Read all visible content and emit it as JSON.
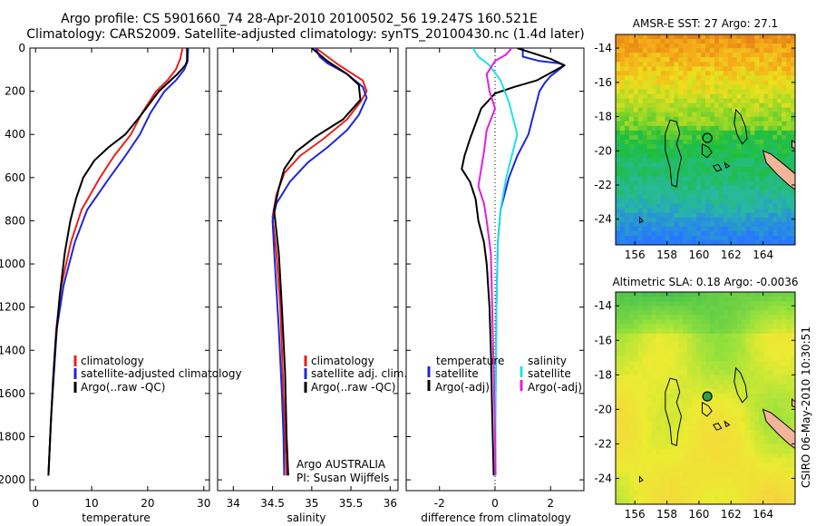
{
  "figure": {
    "title_line1": "Argo profile: CS 5901660_74 28-Apr-2010 20100502_56 19.247S 160.521E",
    "title_line2": "Climatology: CARS2009. Satellite-adjusted climatology: synTS_20100430.nc (1.4d later)",
    "side_stamp": "CSIRO 06-May-2010 10:30:51"
  },
  "colors": {
    "climatology": "#e8201c",
    "satellite": "#1c28d8",
    "argo": "#000000",
    "cyan": "#20e0e8",
    "magenta": "#e020e0",
    "coast": "#000000",
    "land": "#f2b59a"
  },
  "chart_data": [
    {
      "type": "line",
      "name": "temperature",
      "xlabel": "temperature",
      "xlim": [
        -1,
        31
      ],
      "ylim": [
        2050,
        0
      ],
      "xticks": [
        0,
        10,
        20,
        30
      ],
      "yticks": [
        0,
        200,
        400,
        600,
        800,
        1000,
        1200,
        1400,
        1600,
        1800,
        2000
      ],
      "legend": [
        "climatology",
        "satellite-adjusted climatology",
        "Argo(..raw -QC)"
      ],
      "series": [
        {
          "name": "climatology",
          "color": "#e8201c",
          "points": [
            [
              26.2,
              0
            ],
            [
              25.8,
              50
            ],
            [
              25,
              100
            ],
            [
              23.5,
              150
            ],
            [
              21.5,
              200
            ],
            [
              19,
              300
            ],
            [
              17,
              400
            ],
            [
              14,
              500
            ],
            [
              11.5,
              600
            ],
            [
              8.2,
              750
            ],
            [
              6.3,
              900
            ],
            [
              4.6,
              1100
            ],
            [
              3.7,
              1300
            ],
            [
              3.2,
              1500
            ],
            [
              2.8,
              1700
            ],
            [
              2.3,
              1980
            ]
          ]
        },
        {
          "name": "satellite-adjusted climatology",
          "color": "#1c28d8",
          "points": [
            [
              27.2,
              0
            ],
            [
              27.1,
              60
            ],
            [
              26.5,
              100
            ],
            [
              25,
              150
            ],
            [
              23,
              200
            ],
            [
              20.5,
              300
            ],
            [
              18.6,
              400
            ],
            [
              16,
              500
            ],
            [
              13.2,
              600
            ],
            [
              9.2,
              750
            ],
            [
              7,
              900
            ],
            [
              5,
              1100
            ],
            [
              3.8,
              1300
            ],
            [
              3.3,
              1500
            ],
            [
              2.8,
              1700
            ],
            [
              2.3,
              1980
            ]
          ]
        },
        {
          "name": "Argo(..raw -QC)",
          "color": "#000000",
          "points": [
            [
              27,
              0
            ],
            [
              27,
              60
            ],
            [
              26.7,
              80
            ],
            [
              25.3,
              120
            ],
            [
              22,
              200
            ],
            [
              18.5,
              320
            ],
            [
              16,
              400
            ],
            [
              13,
              460
            ],
            [
              10.5,
              520
            ],
            [
              8.5,
              600
            ],
            [
              7.2,
              700
            ],
            [
              6.2,
              800
            ],
            [
              5.2,
              950
            ],
            [
              4.3,
              1150
            ],
            [
              3.6,
              1350
            ],
            [
              3.1,
              1550
            ],
            [
              2.7,
              1750
            ],
            [
              2.3,
              1980
            ]
          ]
        }
      ]
    },
    {
      "type": "line",
      "name": "salinity",
      "xlabel": "salinity",
      "xlim": [
        33.8,
        36.1
      ],
      "ylim": [
        2050,
        0
      ],
      "xticks": [
        34,
        34.5,
        35,
        35.5,
        36
      ],
      "legend": [
        "climatology",
        "satellite adj. clim.",
        "Argo(..raw -QC)"
      ],
      "annotation_line1": "Argo AUSTRALIA",
      "annotation_line2": "PI: Susan Wijffels",
      "series": [
        {
          "name": "climatology",
          "color": "#e8201c",
          "points": [
            [
              35.05,
              0
            ],
            [
              35.35,
              80
            ],
            [
              35.65,
              150
            ],
            [
              35.7,
              200
            ],
            [
              35.62,
              250
            ],
            [
              35.45,
              330
            ],
            [
              35.15,
              420
            ],
            [
              34.85,
              500
            ],
            [
              34.65,
              580
            ],
            [
              34.55,
              680
            ],
            [
              34.5,
              780
            ],
            [
              34.55,
              950
            ],
            [
              34.6,
              1200
            ],
            [
              34.63,
              1500
            ],
            [
              34.66,
              1800
            ],
            [
              34.68,
              1980
            ]
          ]
        },
        {
          "name": "satellite adj. clim.",
          "color": "#1c28d8",
          "points": [
            [
              35.05,
              0
            ],
            [
              35.1,
              40
            ],
            [
              35.2,
              70
            ],
            [
              35.45,
              120
            ],
            [
              35.65,
              180
            ],
            [
              35.7,
              230
            ],
            [
              35.6,
              310
            ],
            [
              35.45,
              380
            ],
            [
              35.2,
              460
            ],
            [
              34.95,
              530
            ],
            [
              34.72,
              620
            ],
            [
              34.55,
              720
            ],
            [
              34.5,
              800
            ],
            [
              34.53,
              1000
            ],
            [
              34.58,
              1300
            ],
            [
              34.62,
              1600
            ],
            [
              34.64,
              1800
            ],
            [
              34.65,
              1980
            ]
          ]
        },
        {
          "name": "Argo(..raw -QC)",
          "color": "#000000",
          "points": [
            [
              35,
              0
            ],
            [
              35.2,
              60
            ],
            [
              35.45,
              120
            ],
            [
              35.6,
              170
            ],
            [
              35.62,
              240
            ],
            [
              35.4,
              330
            ],
            [
              35.05,
              410
            ],
            [
              34.8,
              480
            ],
            [
              34.65,
              560
            ],
            [
              34.58,
              650
            ],
            [
              34.52,
              750
            ],
            [
              34.58,
              950
            ],
            [
              34.62,
              1200
            ],
            [
              34.66,
              1500
            ],
            [
              34.68,
              1800
            ],
            [
              34.7,
              1980
            ]
          ]
        }
      ]
    },
    {
      "type": "line",
      "name": "difference",
      "xlabel": "difference from climatology",
      "xlim": [
        -3.2,
        3.2
      ],
      "ylim": [
        2050,
        0
      ],
      "xticks": [
        -2,
        0,
        2
      ],
      "legend_left_header": "temperature",
      "legend_right_header": "salinity",
      "legend_left": [
        "satellite",
        "Argo(-adj)"
      ],
      "legend_right": [
        "satellite",
        "Argo(-adj)"
      ],
      "series": [
        {
          "name": "temperature satellite",
          "color": "#1c28d8",
          "points": [
            [
              1,
              0
            ],
            [
              1,
              40
            ],
            [
              1.6,
              60
            ],
            [
              2.3,
              70
            ],
            [
              2.5,
              80
            ],
            [
              2,
              130
            ],
            [
              1.8,
              160
            ],
            [
              1.6,
              200
            ],
            [
              1.4,
              300
            ],
            [
              1.2,
              400
            ],
            [
              0.8,
              500
            ],
            [
              0.5,
              600
            ],
            [
              0.2,
              750
            ],
            [
              0.1,
              900
            ],
            [
              0.05,
              1200
            ],
            [
              0.02,
              1600
            ],
            [
              0.01,
              1980
            ]
          ]
        },
        {
          "name": "temperature Argo(-adj)",
          "color": "#000000",
          "points": [
            [
              0.8,
              0
            ],
            [
              2,
              50
            ],
            [
              2.5,
              80
            ],
            [
              1.5,
              150
            ],
            [
              0.7,
              180
            ],
            [
              0,
              210
            ],
            [
              -0.5,
              280
            ],
            [
              -0.7,
              350
            ],
            [
              -0.9,
              420
            ],
            [
              -1.1,
              500
            ],
            [
              -1.2,
              560
            ],
            [
              -0.9,
              620
            ],
            [
              -0.7,
              700
            ],
            [
              -0.6,
              800
            ],
            [
              -0.4,
              900
            ],
            [
              -0.3,
              1000
            ],
            [
              -0.2,
              1200
            ],
            [
              -0.15,
              1400
            ],
            [
              -0.1,
              1700
            ],
            [
              -0.05,
              1980
            ]
          ]
        },
        {
          "name": "salinity satellite",
          "color": "#20e0e8",
          "points": [
            [
              -0.8,
              0
            ],
            [
              -0.6,
              40
            ],
            [
              -0.2,
              80
            ],
            [
              0.2,
              150
            ],
            [
              0.5,
              250
            ],
            [
              0.8,
              400
            ],
            [
              0.6,
              500
            ],
            [
              0.4,
              600
            ],
            [
              0.2,
              750
            ],
            [
              0.1,
              900
            ],
            [
              0.05,
              1200
            ],
            [
              0.02,
              1600
            ],
            [
              0.01,
              1980
            ]
          ]
        },
        {
          "name": "salinity Argo(-adj)",
          "color": "#e020e0",
          "points": [
            [
              0.6,
              0
            ],
            [
              0.4,
              30
            ],
            [
              0,
              60
            ],
            [
              -0.3,
              120
            ],
            [
              -0.2,
              200
            ],
            [
              0,
              280
            ],
            [
              -0.3,
              380
            ],
            [
              -0.4,
              480
            ],
            [
              -0.5,
              560
            ],
            [
              -0.6,
              640
            ],
            [
              -0.4,
              720
            ],
            [
              -0.3,
              800
            ],
            [
              -0.15,
              950
            ],
            [
              -0.1,
              1200
            ],
            [
              -0.05,
              1500
            ],
            [
              0,
              1800
            ],
            [
              0.02,
              1980
            ]
          ]
        }
      ]
    },
    {
      "type": "heatmap",
      "name": "sst-map",
      "title": "AMSR-E SST: 27 Argo: 27.1",
      "xlim": [
        154.8,
        166
      ],
      "ylim": [
        -25.5,
        -13.2
      ],
      "xticks": [
        156,
        158,
        160,
        162,
        164
      ],
      "yticks": [
        -14,
        -16,
        -18,
        -20,
        -22,
        -24
      ],
      "argo_position": [
        160.52,
        -19.25
      ],
      "argo_marker": "open-circle"
    },
    {
      "type": "heatmap",
      "name": "sla-map",
      "title": "Altimetric SLA: 0.18 Argo: -0.0036",
      "xlim": [
        154.8,
        166
      ],
      "ylim": [
        -25.5,
        -13.2
      ],
      "xticks": [
        156,
        158,
        160,
        162,
        164
      ],
      "yticks": [
        -14,
        -16,
        -18,
        -20,
        -22,
        -24
      ],
      "argo_position": [
        160.52,
        -19.25
      ],
      "argo_marker": "filled-circle"
    }
  ]
}
